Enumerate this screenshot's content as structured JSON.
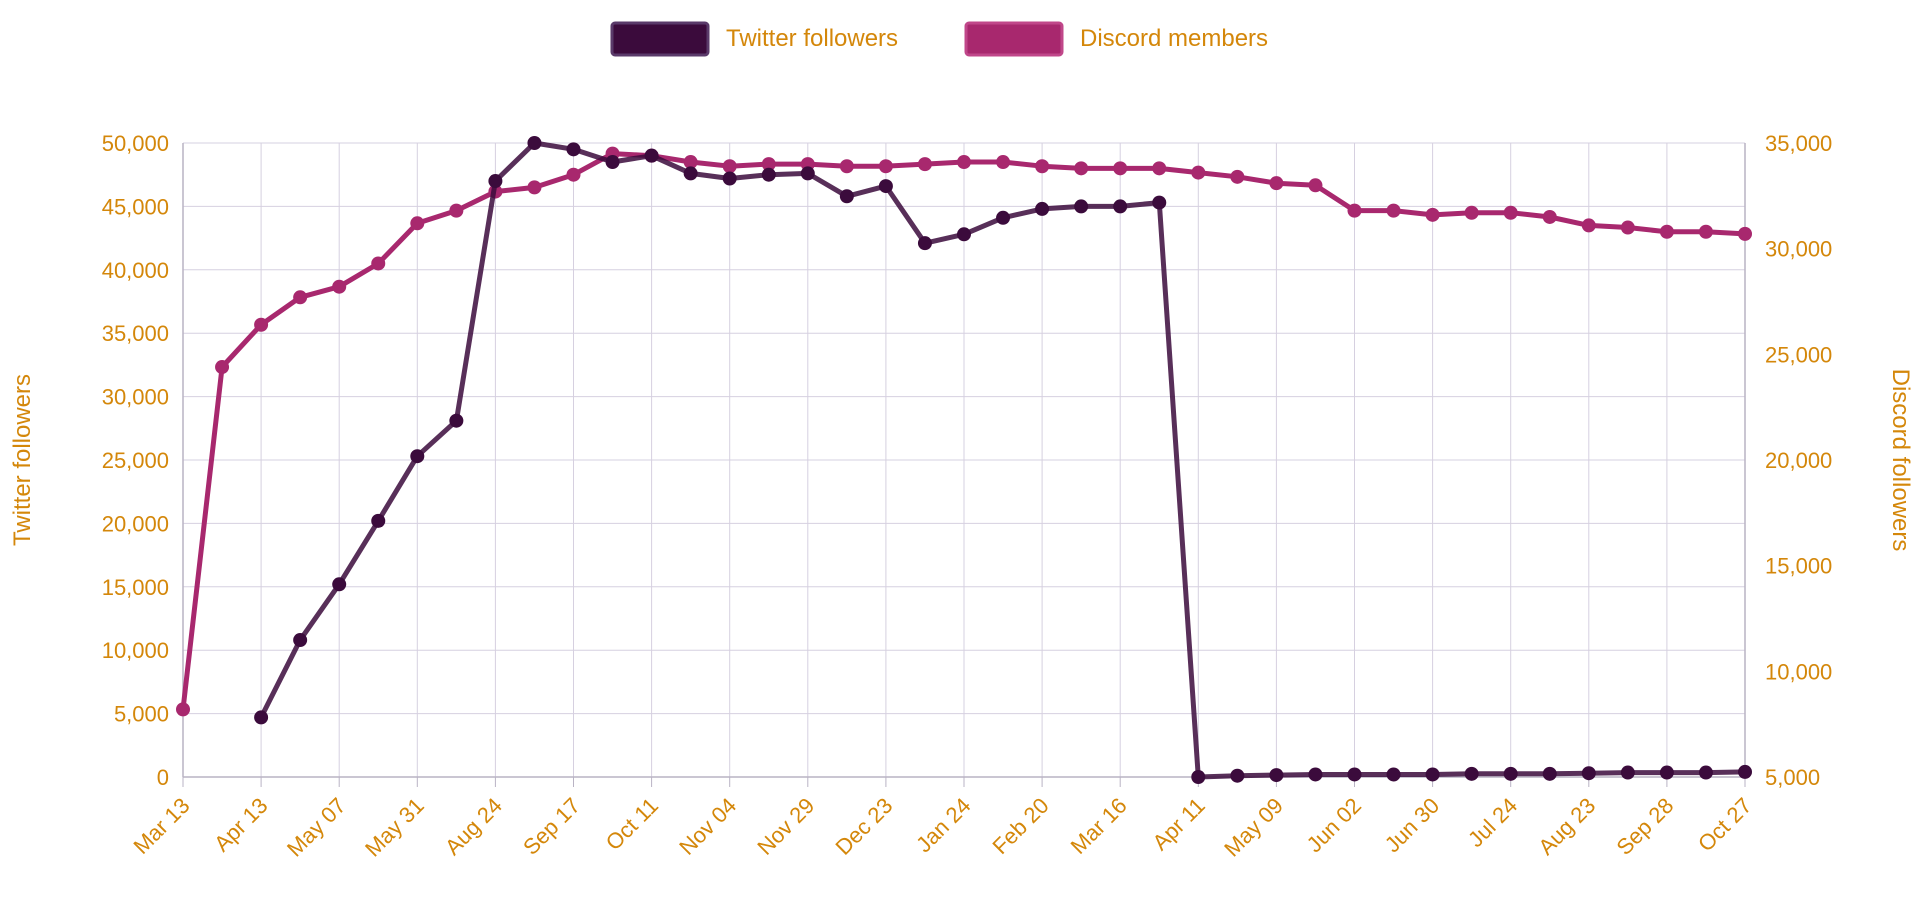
{
  "colors": {
    "twitter": "#3b0b3c",
    "discord": "#a8286e",
    "text": "#d4870a",
    "grid": "#d6d0e0",
    "axis": "#b9b3c4"
  },
  "chart_data": {
    "type": "line",
    "grid": true,
    "legend": {
      "position": "top-center"
    },
    "x": [
      "Mar 13",
      "",
      "Apr 13",
      "",
      "May 07",
      "",
      "May 31",
      "",
      "Aug 24",
      "",
      "Sep 17",
      "",
      "Oct 11",
      "",
      "Nov 04",
      "",
      "Nov 29",
      "",
      "Dec 23",
      "",
      "Jan 24",
      "",
      "Feb 20",
      "",
      "Mar 16",
      "",
      "Apr 11",
      "",
      "May 09",
      "",
      "Jun 02",
      "",
      "Jun 30",
      "",
      "Jul 24",
      "",
      "Aug 23",
      "",
      "Sep 28",
      "",
      "Oct 27"
    ],
    "xtick_labels": [
      "Mar 13",
      "Apr 13",
      "May 07",
      "May 31",
      "Aug 24",
      "Sep 17",
      "Oct 11",
      "Nov 04",
      "Nov 29",
      "Dec 23",
      "Jan 24",
      "Feb 20",
      "Mar 16",
      "Apr 11",
      "May 09",
      "Jun 02",
      "Jun 30",
      "Jul 24",
      "Aug 23",
      "Sep 28",
      "Oct 27"
    ],
    "left_axis": {
      "label": "Twitter followers",
      "range": [
        0,
        50000
      ],
      "ticks": [
        "0",
        "5,000",
        "10,000",
        "15,000",
        "20,000",
        "25,000",
        "30,000",
        "35,000",
        "40,000",
        "45,000",
        "50,000"
      ]
    },
    "right_axis": {
      "label": "Discord followers",
      "range": [
        5000,
        35000
      ],
      "ticks": [
        "5,000",
        "10,000",
        "15,000",
        "20,000",
        "25,000",
        "30,000",
        "35,000"
      ]
    },
    "series": [
      {
        "name": "Twitter followers",
        "axis": "left",
        "values": [
          null,
          null,
          4700,
          10800,
          15200,
          20200,
          25300,
          28100,
          47000,
          50000,
          49500,
          48500,
          49000,
          47600,
          47200,
          47500,
          47600,
          45800,
          46600,
          42100,
          42800,
          44100,
          44800,
          45000,
          45000,
          45300,
          0,
          100,
          150,
          200,
          200,
          200,
          200,
          250,
          250,
          250,
          300,
          350,
          350,
          350,
          400
        ]
      },
      {
        "name": "Discord members",
        "axis": "right",
        "values": [
          8200,
          24400,
          26400,
          27700,
          28200,
          29300,
          31200,
          31800,
          32700,
          32900,
          33500,
          34500,
          34400,
          34100,
          33900,
          34000,
          34000,
          33900,
          33900,
          34000,
          34100,
          34100,
          33900,
          33800,
          33800,
          33800,
          33600,
          33400,
          33100,
          33000,
          31800,
          31800,
          31600,
          31700,
          31700,
          31500,
          31100,
          31000,
          30800,
          30800,
          30700
        ]
      }
    ]
  }
}
